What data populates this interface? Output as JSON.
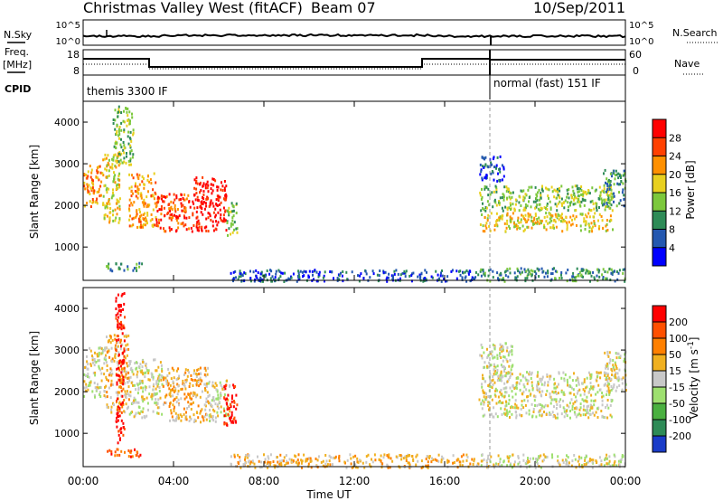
{
  "header": {
    "station": "Christmas Valley West (fitACF)",
    "beam": "Beam 07",
    "date": "10/Sep/2011"
  },
  "top_panels": {
    "nsky_label": "N.Sky",
    "nsearch_label": "N.Search",
    "noise_ticks_left": [
      "10^5",
      "10^0"
    ],
    "noise_ticks_right": [
      "10^5",
      "10^0"
    ],
    "freq_label_line1": "Freq.",
    "freq_label_line2": "[MHz]",
    "freq_ticks": [
      "18",
      "8"
    ],
    "nave_label": "Nave",
    "nave_ticks": [
      "60",
      "0"
    ],
    "cpid_label": "CPID",
    "cpid_segments": [
      {
        "label": "themis 3300 IF",
        "start_hour": 0,
        "end_hour": 18
      },
      {
        "label": "normal (fast) 151 IF",
        "start_hour": 18,
        "end_hour": 24
      }
    ]
  },
  "chart_data": [
    {
      "type": "heatmap",
      "title": "",
      "ylabel": "Slant Range [km]",
      "xlabel": "",
      "xlim": [
        0,
        24
      ],
      "ylim": [
        200,
        4500
      ],
      "yticks": [
        "1000",
        "2000",
        "3000",
        "4000"
      ],
      "colorbar": {
        "label": "Power [dB]",
        "ticks": [
          "4",
          "8",
          "12",
          "16",
          "20",
          "24",
          "28"
        ],
        "colors": [
          "#0000ff",
          "#2458b0",
          "#2e8b57",
          "#7cc83c",
          "#e8d020",
          "#ff9000",
          "#ff4000",
          "#ff0000"
        ]
      },
      "scatter_regions": [
        {
          "t0": 0.0,
          "t1": 0.8,
          "r0": 2000,
          "r1": 3000,
          "level": 5
        },
        {
          "t0": 0.8,
          "t1": 1.6,
          "r0": 1600,
          "r1": 3300,
          "level": 4
        },
        {
          "t0": 1.3,
          "t1": 2.2,
          "r0": 3000,
          "r1": 4400,
          "level": 3
        },
        {
          "t0": 2.0,
          "t1": 3.2,
          "r0": 1500,
          "r1": 2800,
          "level": 5
        },
        {
          "t0": 3.2,
          "t1": 4.8,
          "r0": 1400,
          "r1": 2300,
          "level": 6
        },
        {
          "t0": 4.8,
          "t1": 6.3,
          "r0": 1400,
          "r1": 2700,
          "level": 7
        },
        {
          "t0": 6.3,
          "t1": 6.8,
          "r0": 1300,
          "r1": 2100,
          "level": 3
        },
        {
          "t0": 1.0,
          "t1": 2.6,
          "r0": 450,
          "r1": 650,
          "level": 2
        },
        {
          "t0": 6.5,
          "t1": 17.5,
          "r0": 200,
          "r1": 480,
          "level": 1
        },
        {
          "t0": 17.5,
          "t1": 24.0,
          "r0": 200,
          "r1": 520,
          "level": 2
        },
        {
          "t0": 17.5,
          "t1": 23.4,
          "r0": 1400,
          "r1": 1850,
          "level": 4
        },
        {
          "t0": 17.5,
          "t1": 23.4,
          "r0": 1900,
          "r1": 2500,
          "level": 3
        },
        {
          "t0": 17.5,
          "t1": 18.6,
          "r0": 2600,
          "r1": 3200,
          "level": 1
        },
        {
          "t0": 23.0,
          "t1": 24.0,
          "r0": 2000,
          "r1": 2900,
          "level": 2
        }
      ]
    },
    {
      "type": "heatmap",
      "title": "",
      "ylabel": "Slant Range [km]",
      "xlabel": "Time UT",
      "xlim": [
        0,
        24
      ],
      "ylim": [
        200,
        4500
      ],
      "yticks": [
        "1000",
        "2000",
        "3000",
        "4000"
      ],
      "xticks": [
        "00:00",
        "04:00",
        "08:00",
        "12:00",
        "16:00",
        "20:00",
        "00:00"
      ],
      "colorbar": {
        "label": "Velocity [m s^-1]",
        "ticks": [
          "200",
          "100",
          "50",
          "15",
          "-15",
          "-50",
          "-100",
          "-200"
        ],
        "colors": [
          "#1a3cc8",
          "#2e8b57",
          "#4ab040",
          "#9ee070",
          "#c8c8c8",
          "#f0b020",
          "#ff8000",
          "#ff5000",
          "#ff0000"
        ]
      },
      "scatter_regions": [
        {
          "t0": 0.0,
          "t1": 1.0,
          "r0": 1900,
          "r1": 3100,
          "level": 4
        },
        {
          "t0": 1.0,
          "t1": 2.0,
          "r0": 1500,
          "r1": 3400,
          "level": 5
        },
        {
          "t0": 1.4,
          "t1": 1.8,
          "r0": 800,
          "r1": 4400,
          "level": 8
        },
        {
          "t0": 2.0,
          "t1": 3.5,
          "r0": 1400,
          "r1": 2800,
          "level": 4
        },
        {
          "t0": 3.5,
          "t1": 5.5,
          "r0": 1300,
          "r1": 2600,
          "level": 5
        },
        {
          "t0": 5.5,
          "t1": 6.5,
          "r0": 1300,
          "r1": 2300,
          "level": 4
        },
        {
          "t0": 6.2,
          "t1": 6.8,
          "r0": 1200,
          "r1": 2200,
          "level": 8
        },
        {
          "t0": 1.0,
          "t1": 2.6,
          "r0": 450,
          "r1": 650,
          "level": 7
        },
        {
          "t0": 6.5,
          "t1": 17.5,
          "r0": 200,
          "r1": 520,
          "level": 5
        },
        {
          "t0": 17.5,
          "t1": 24.0,
          "r0": 200,
          "r1": 520,
          "level": 4
        },
        {
          "t0": 17.5,
          "t1": 23.4,
          "r0": 1400,
          "r1": 1850,
          "level": 4
        },
        {
          "t0": 17.5,
          "t1": 23.4,
          "r0": 1900,
          "r1": 2500,
          "level": 4
        },
        {
          "t0": 17.5,
          "t1": 19.0,
          "r0": 2500,
          "r1": 3200,
          "level": 4
        },
        {
          "t0": 23.0,
          "t1": 24.0,
          "r0": 2000,
          "r1": 3000,
          "level": 4
        }
      ]
    }
  ]
}
